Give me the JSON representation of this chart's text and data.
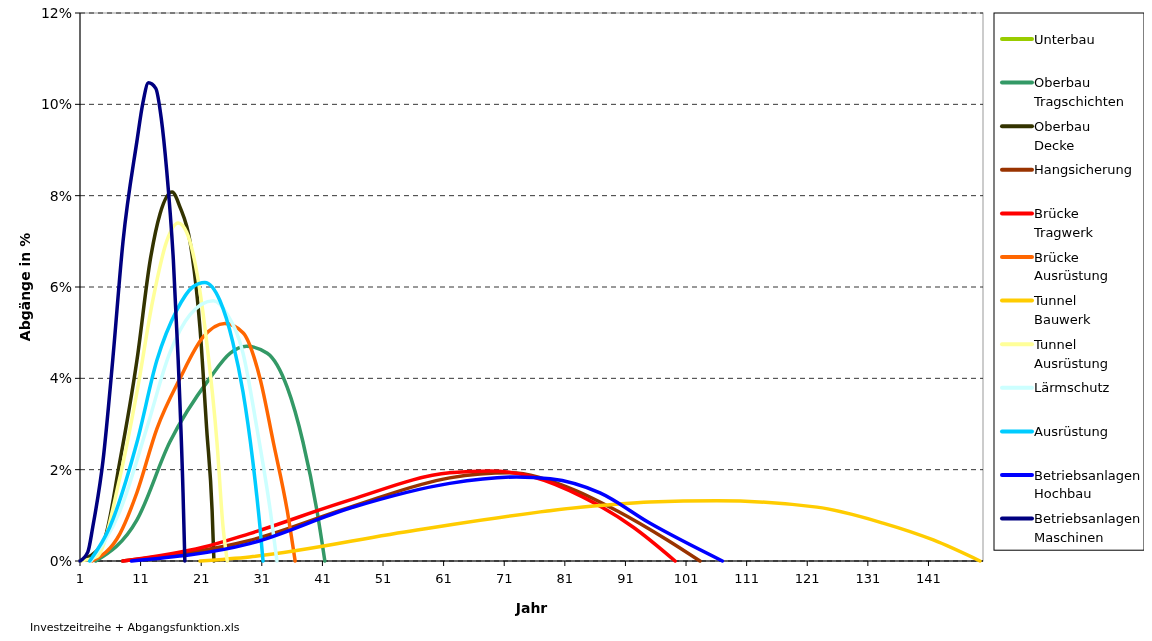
{
  "chart_data": {
    "type": "line",
    "xlabel": "Jahr",
    "ylabel": "Abgänge in %",
    "xlim": [
      1,
      150
    ],
    "xticks": [
      1,
      11,
      21,
      31,
      41,
      51,
      61,
      71,
      81,
      91,
      101,
      111,
      121,
      131,
      141
    ],
    "ylim": [
      0,
      12
    ],
    "yticks": [
      {
        "value": 0,
        "label": "0%"
      },
      {
        "value": 2,
        "label": "2%"
      },
      {
        "value": 4,
        "label": "4%"
      },
      {
        "value": 6,
        "label": "6%"
      },
      {
        "value": 8,
        "label": "8%"
      },
      {
        "value": 10,
        "label": "10%"
      },
      {
        "value": 12,
        "label": "12%"
      }
    ],
    "grid": "y",
    "legend": "right",
    "line_style": "solid",
    "marker": "none",
    "annotations": [
      "Investzeitreihe + Abgangsfunktion.xls"
    ],
    "series": [
      {
        "name": "Unterbau",
        "color": "#99cc00"
      },
      {
        "name": "Oberbau Tragschichten",
        "color": "#339966",
        "x": [
          3.6,
          10.4,
          15.8,
          22.4,
          25.8,
          28.5,
          31.9,
          35.2,
          37.8,
          40.1,
          41.4
        ],
        "values": [
          0,
          0.9,
          2.6,
          4.0,
          4.55,
          4.7,
          4.55,
          3.8,
          2.6,
          1.1,
          0
        ]
      },
      {
        "name": "Oberbau Decke",
        "color": "#333300",
        "x": [
          1,
          4.8,
          7.6,
          10.4,
          12.6,
          14.2,
          16.2,
          17.5,
          19.2,
          20.8,
          21.9,
          22.8,
          23.1
        ],
        "values": [
          0,
          0.4,
          2.2,
          4.4,
          6.6,
          7.6,
          8.08,
          7.75,
          6.96,
          5.1,
          2.9,
          1.1,
          0
        ]
      },
      {
        "name": "Hangsicherung",
        "color": "#993300",
        "x": [
          8,
          29,
          45.6,
          62,
          71.9,
          81.4,
          89.6,
          97.9,
          103.3
        ],
        "values": [
          0,
          0.45,
          1.18,
          1.82,
          1.93,
          1.62,
          1.1,
          0.46,
          0
        ]
      },
      {
        "name": "Brücke Tragwerk",
        "color": "#ff0000",
        "x": [
          8.1,
          21.3,
          29,
          45.6,
          62,
          68.7,
          75.8,
          84,
          92.3,
          99.2
        ],
        "values": [
          0,
          0.3,
          0.6,
          1.34,
          1.93,
          1.97,
          1.84,
          1.4,
          0.74,
          0
        ]
      },
      {
        "name": "Brücke Ausrüstung",
        "color": "#ff6600",
        "x": [
          3,
          7.6,
          10.4,
          13.7,
          17.5,
          21.3,
          24.9,
          27.9,
          30.7,
          32.9,
          35.2,
          36.5
        ],
        "values": [
          0,
          0.6,
          1.5,
          2.9,
          4.0,
          4.9,
          5.2,
          5.0,
          4.0,
          2.6,
          1.1,
          0
        ]
      },
      {
        "name": "Tunnel Bauwerk",
        "color": "#ffcc00",
        "x": [
          20.8,
          29,
          56.6,
          84,
          95,
          106.1,
          122.6,
          133.5,
          141.8,
          149.5
        ],
        "values": [
          0,
          0.09,
          0.68,
          1.18,
          1.29,
          1.32,
          1.18,
          0.83,
          0.46,
          0
        ]
      },
      {
        "name": "Tunnel Ausrüstung",
        "color": "#ffff99",
        "x": [
          1,
          3.8,
          7.6,
          10.4,
          13,
          15.3,
          17.2,
          18.6,
          20.3,
          21.9,
          23.6,
          24.6,
          25.3
        ],
        "values": [
          0,
          0.1,
          1.84,
          3.7,
          5.7,
          7.0,
          7.4,
          7.2,
          6.3,
          4.8,
          2.6,
          0.75,
          0
        ]
      },
      {
        "name": "Lärmschutz",
        "color": "#ccffff",
        "x": [
          2.8,
          7.6,
          12,
          15.8,
          19.2,
          23,
          25.3,
          27.9,
          30.2,
          32.4,
          33.5
        ],
        "values": [
          0,
          1.1,
          2.9,
          4.55,
          5.4,
          5.7,
          5.4,
          4.55,
          2.9,
          1.1,
          0
        ]
      },
      {
        "name": "Ausrüstung",
        "color": "#00ccff",
        "x": [
          2.6,
          5.9,
          10.4,
          13.7,
          17,
          19.6,
          21.6,
          24.1,
          26.2,
          27.9,
          29.5,
          30.7,
          31.2
        ],
        "values": [
          0,
          0.74,
          2.6,
          4.4,
          5.5,
          6.0,
          6.1,
          5.7,
          4.8,
          3.7,
          2.2,
          0.74,
          0
        ]
      },
      {
        "name": "Betriebsanlagen Hochbau",
        "color": "#0000ff",
        "x": [
          9.5,
          29,
          45.6,
          62,
          73,
          78.6,
          86.8,
          95,
          107
        ],
        "values": [
          0,
          0.38,
          1.16,
          1.7,
          1.84,
          1.8,
          1.49,
          0.83,
          0
        ]
      },
      {
        "name": "Betriebsanlagen Maschinen",
        "color": "#000080",
        "x": [
          1,
          2.3,
          3.1,
          4.8,
          6.4,
          8.1,
          10.4,
          11.4,
          12.3,
          13.5,
          14.4,
          15.3,
          16.4,
          17.2,
          18,
          18.3
        ],
        "values": [
          0,
          0.2,
          0.74,
          2.2,
          4.4,
          7.0,
          9.2,
          10.05,
          10.47,
          10.35,
          9.7,
          8.56,
          6.6,
          4.4,
          1.5,
          0
        ]
      }
    ]
  }
}
